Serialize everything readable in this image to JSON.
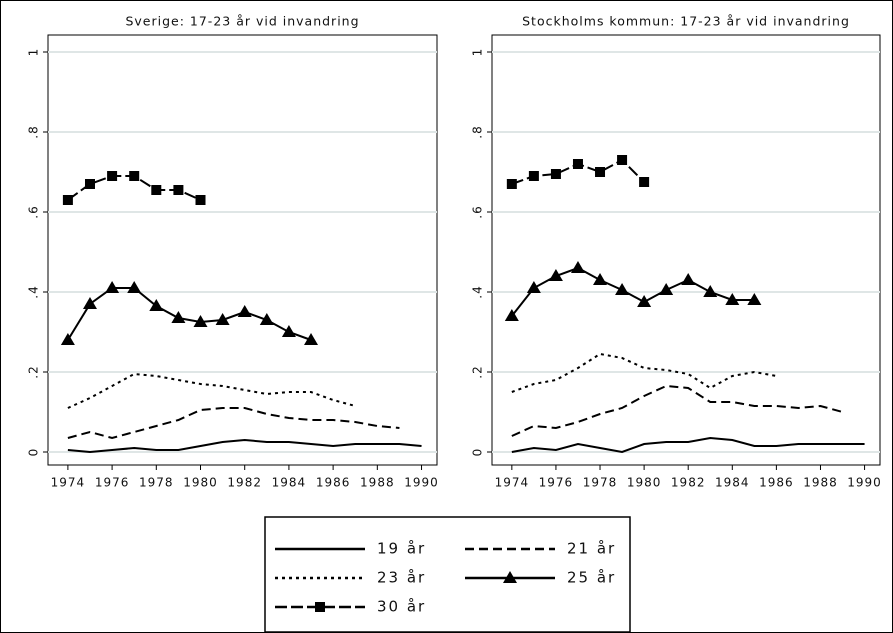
{
  "chart_data": [
    {
      "type": "line",
      "title": "Sverige: 17-23 år vid invandring",
      "x": [
        1974,
        1975,
        1976,
        1977,
        1978,
        1979,
        1980,
        1981,
        1982,
        1983,
        1984,
        1985,
        1986,
        1987,
        1988,
        1989,
        1990
      ],
      "xlim": [
        1973.1,
        1990.7
      ],
      "xticks": [
        1974,
        1976,
        1978,
        1980,
        1982,
        1984,
        1986,
        1988,
        1990
      ],
      "ylim": [
        -0.0325,
        1.0425
      ],
      "yticks": [
        0,
        {
          "value": 0.2,
          "label": ".2"
        },
        {
          "value": 0.4,
          "label": ".4"
        },
        {
          "value": 0.6,
          "label": ".6"
        },
        {
          "value": 0.8,
          "label": ".8"
        },
        1
      ],
      "grid": true,
      "series": [
        {
          "name": "19 år",
          "color": "#000000",
          "style": "solid",
          "marker": "none",
          "values": [
            0.005,
            0,
            0.005,
            0.01,
            0.005,
            0.005,
            0.015,
            0.025,
            0.03,
            0.025,
            0.025,
            0.02,
            0.015,
            0.02,
            0.02,
            0.02,
            0.015
          ]
        },
        {
          "name": "21 år",
          "color": "#000000",
          "style": "dash",
          "marker": "none",
          "values": [
            0.035,
            0.05,
            0.035,
            0.05,
            0.065,
            0.08,
            0.105,
            0.11,
            0.11,
            0.095,
            0.085,
            0.08,
            0.08,
            0.075,
            0.065,
            0.06,
            null
          ]
        },
        {
          "name": "23 år",
          "color": "#000000",
          "style": "dot",
          "marker": "none",
          "values": [
            0.11,
            0.135,
            0.165,
            0.195,
            0.19,
            0.18,
            0.17,
            0.165,
            0.155,
            0.145,
            0.15,
            0.15,
            0.13,
            0.115,
            null,
            null,
            null
          ]
        },
        {
          "name": "25 år",
          "color": "#000000",
          "style": "solid",
          "marker": "triangle",
          "values": [
            0.28,
            0.37,
            0.41,
            0.41,
            0.365,
            0.335,
            0.325,
            0.33,
            0.35,
            0.33,
            0.3,
            0.28,
            null,
            null,
            null,
            null,
            null
          ]
        },
        {
          "name": "30 år",
          "color": "#000000",
          "style": "longdash",
          "marker": "square",
          "values": [
            0.63,
            0.67,
            0.69,
            0.69,
            0.655,
            0.655,
            0.63,
            null,
            null,
            null,
            null,
            null,
            null,
            null,
            null,
            null,
            null
          ]
        }
      ]
    },
    {
      "type": "line",
      "title": "Stockholms kommun: 17-23 år vid invandring",
      "x": [
        1974,
        1975,
        1976,
        1977,
        1978,
        1979,
        1980,
        1981,
        1982,
        1983,
        1984,
        1985,
        1986,
        1987,
        1988,
        1989,
        1990
      ],
      "xlim": [
        1973.1,
        1990.7
      ],
      "xticks": [
        1974,
        1976,
        1978,
        1980,
        1982,
        1984,
        1986,
        1988,
        1990
      ],
      "ylim": [
        -0.0325,
        1.0425
      ],
      "yticks": [
        0,
        {
          "value": 0.2,
          "label": ".2"
        },
        {
          "value": 0.4,
          "label": ".4"
        },
        {
          "value": 0.6,
          "label": ".6"
        },
        {
          "value": 0.8,
          "label": ".8"
        },
        1
      ],
      "grid": true,
      "series": [
        {
          "color": "#000000",
          "style": "solid",
          "marker": "none",
          "values": [
            0,
            0.01,
            0.005,
            0.02,
            0.01,
            0,
            0.02,
            0.025,
            0.025,
            0.035,
            0.03,
            0.015,
            0.015,
            0.02,
            0.02,
            0.02,
            0.02
          ]
        },
        {
          "color": "#000000",
          "style": "dash",
          "marker": "none",
          "values": [
            0.04,
            0.065,
            0.06,
            0.075,
            0.095,
            0.11,
            0.14,
            0.165,
            0.16,
            0.125,
            0.125,
            0.115,
            0.115,
            0.11,
            0.115,
            0.1,
            null
          ]
        },
        {
          "color": "#000000",
          "style": "dot",
          "marker": "none",
          "values": [
            0.15,
            0.17,
            0.18,
            0.21,
            0.245,
            0.235,
            0.21,
            0.205,
            0.195,
            0.16,
            0.19,
            0.2,
            0.19,
            null,
            null,
            null,
            null
          ]
        },
        {
          "color": "#000000",
          "style": "solid",
          "marker": "triangle",
          "values": [
            0.34,
            0.41,
            0.44,
            0.46,
            0.43,
            0.405,
            0.375,
            0.405,
            0.43,
            0.4,
            0.38,
            0.38,
            null,
            null,
            null,
            null,
            null
          ]
        },
        {
          "color": "#000000",
          "style": "longdash",
          "marker": "square",
          "values": [
            0.67,
            0.69,
            0.695,
            0.72,
            0.7,
            0.73,
            0.675,
            null,
            null,
            null,
            null,
            null,
            null,
            null,
            null,
            null,
            null
          ]
        }
      ]
    }
  ]
}
